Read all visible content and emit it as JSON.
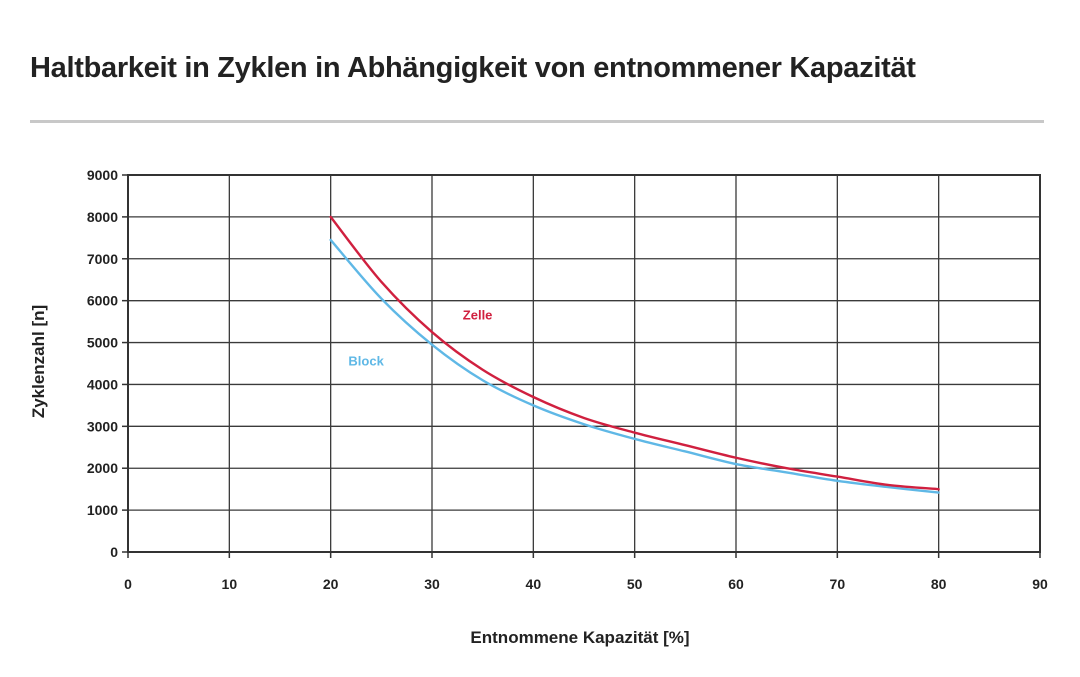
{
  "chart_data": {
    "type": "line",
    "title": "Haltbarkeit in Zyklen in Abhängigkeit von entnommener Kapazität",
    "xlabel": "Entnommene Kapazität [%]",
    "ylabel": "Zyklenzahl [n]",
    "xlim": [
      0,
      90
    ],
    "ylim": [
      0,
      9000
    ],
    "xticks": [
      0,
      10,
      20,
      30,
      40,
      50,
      60,
      70,
      80,
      90
    ],
    "yticks": [
      0,
      1000,
      2000,
      3000,
      4000,
      5000,
      6000,
      7000,
      8000,
      9000
    ],
    "grid": true,
    "legend": "inline",
    "series": [
      {
        "name": "Zelle",
        "color": "#d0203f",
        "x": [
          20,
          25,
          30,
          35,
          40,
          45,
          50,
          55,
          60,
          65,
          70,
          75,
          80
        ],
        "y": [
          8000,
          6450,
          5250,
          4350,
          3700,
          3200,
          2850,
          2550,
          2250,
          2000,
          1800,
          1600,
          1500
        ]
      },
      {
        "name": "Block",
        "color": "#5fb8e6",
        "x": [
          20,
          25,
          30,
          35,
          40,
          45,
          50,
          55,
          60,
          65,
          70,
          75,
          80
        ],
        "y": [
          7450,
          6050,
          4950,
          4100,
          3500,
          3050,
          2700,
          2400,
          2100,
          1900,
          1700,
          1550,
          1420
        ]
      }
    ],
    "annotations": [
      {
        "text": "Zelle",
        "x": 34.5,
        "y": 5550,
        "color": "#d0203f"
      },
      {
        "text": "Block",
        "x": 23.5,
        "y": 4450,
        "color": "#5fb8e6"
      }
    ]
  }
}
